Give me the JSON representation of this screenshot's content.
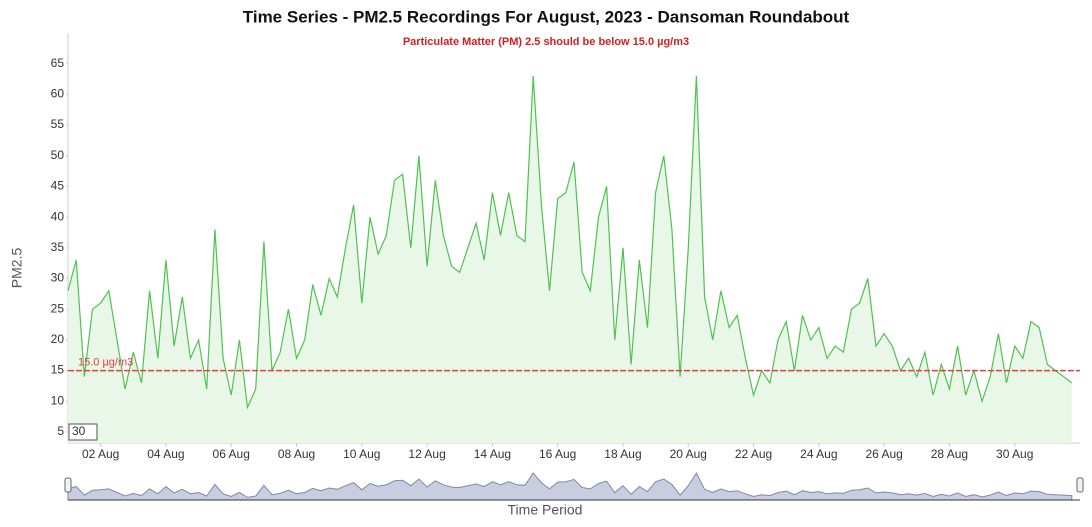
{
  "chart_data": {
    "type": "area",
    "title": "Time Series - PM2.5 Recordings For August, 2023 - Dansoman Roundabout",
    "subtitle": "Particulate Matter (PM) 2.5 should be below 15.0 µg/m3",
    "y_label": "PM2.5",
    "x_label": "Time Period",
    "threshold": {
      "value": 15,
      "label": "15.0 µg/m3",
      "color": "#e04040"
    },
    "range_input": "30",
    "color": "#4fc24f",
    "fill": "#e8f7e8",
    "xlim": [
      1,
      32
    ],
    "ylim": [
      3.2,
      70
    ],
    "yticks": [
      5,
      10,
      15,
      20,
      25,
      30,
      35,
      40,
      45,
      50,
      55,
      60,
      65
    ],
    "xticks": [
      {
        "value": 2,
        "label": "02 Aug"
      },
      {
        "value": 4,
        "label": "04 Aug"
      },
      {
        "value": 6,
        "label": "06 Aug"
      },
      {
        "value": 8,
        "label": "08 Aug"
      },
      {
        "value": 10,
        "label": "10 Aug"
      },
      {
        "value": 12,
        "label": "12 Aug"
      },
      {
        "value": 14,
        "label": "14 Aug"
      },
      {
        "value": 16,
        "label": "16 Aug"
      },
      {
        "value": 18,
        "label": "18 Aug"
      },
      {
        "value": 20,
        "label": "20 Aug"
      },
      {
        "value": 22,
        "label": "22 Aug"
      },
      {
        "value": 24,
        "label": "24 Aug"
      },
      {
        "value": 26,
        "label": "26 Aug"
      },
      {
        "value": 28,
        "label": "28 Aug"
      },
      {
        "value": 30,
        "label": "30 Aug"
      }
    ],
    "x": [
      1,
      1.25,
      1.5,
      1.75,
      2,
      2.25,
      2.5,
      2.75,
      3,
      3.25,
      3.5,
      3.75,
      4,
      4.25,
      4.5,
      4.75,
      5,
      5.25,
      5.5,
      5.75,
      6,
      6.25,
      6.5,
      6.75,
      7,
      7.25,
      7.5,
      7.75,
      8,
      8.25,
      8.5,
      8.75,
      9,
      9.25,
      9.5,
      9.75,
      10,
      10.25,
      10.5,
      10.75,
      11,
      11.25,
      11.5,
      11.75,
      12,
      12.25,
      12.5,
      12.75,
      13,
      13.25,
      13.5,
      13.75,
      14,
      14.25,
      14.5,
      14.75,
      15,
      15.25,
      15.5,
      15.75,
      16,
      16.25,
      16.5,
      16.75,
      17,
      17.25,
      17.5,
      17.75,
      18,
      18.25,
      18.5,
      18.75,
      19,
      19.25,
      19.5,
      19.75,
      20,
      20.25,
      20.5,
      20.75,
      21,
      21.25,
      21.5,
      21.75,
      22,
      22.25,
      22.5,
      22.75,
      23,
      23.25,
      23.5,
      23.75,
      24,
      24.25,
      24.5,
      24.75,
      25,
      25.25,
      25.5,
      25.75,
      26,
      26.25,
      26.5,
      26.75,
      27,
      27.25,
      27.5,
      27.75,
      28,
      28.25,
      28.5,
      28.75,
      29,
      29.25,
      29.5,
      29.75,
      30,
      30.25,
      30.5,
      30.75,
      31,
      31.25,
      31.5,
      31.75
    ],
    "values": [
      28,
      33,
      14,
      25,
      26,
      28,
      20,
      12,
      18,
      13,
      28,
      17,
      33,
      19,
      27,
      17,
      20,
      12,
      38,
      17,
      11,
      20,
      9,
      12,
      36,
      15,
      18,
      25,
      17,
      20,
      29,
      24,
      30,
      27,
      35,
      42,
      26,
      40,
      34,
      37,
      46,
      47,
      35,
      50,
      32,
      46,
      37,
      32,
      31,
      35,
      39,
      33,
      44,
      37,
      44,
      37,
      36,
      63,
      42,
      28,
      43,
      44,
      49,
      31,
      28,
      40,
      45,
      20,
      35,
      16,
      33,
      22,
      44,
      50,
      38,
      14,
      35,
      63,
      27,
      20,
      28,
      22,
      24,
      17,
      11,
      15,
      13,
      20,
      23,
      15,
      24,
      20,
      22,
      17,
      19,
      18,
      25,
      26,
      30,
      19,
      21,
      19,
      15,
      17,
      14,
      18,
      11,
      16,
      12,
      19,
      11,
      15,
      10,
      14,
      21,
      13,
      19,
      17,
      23,
      22,
      16,
      15,
      14,
      13
    ]
  }
}
